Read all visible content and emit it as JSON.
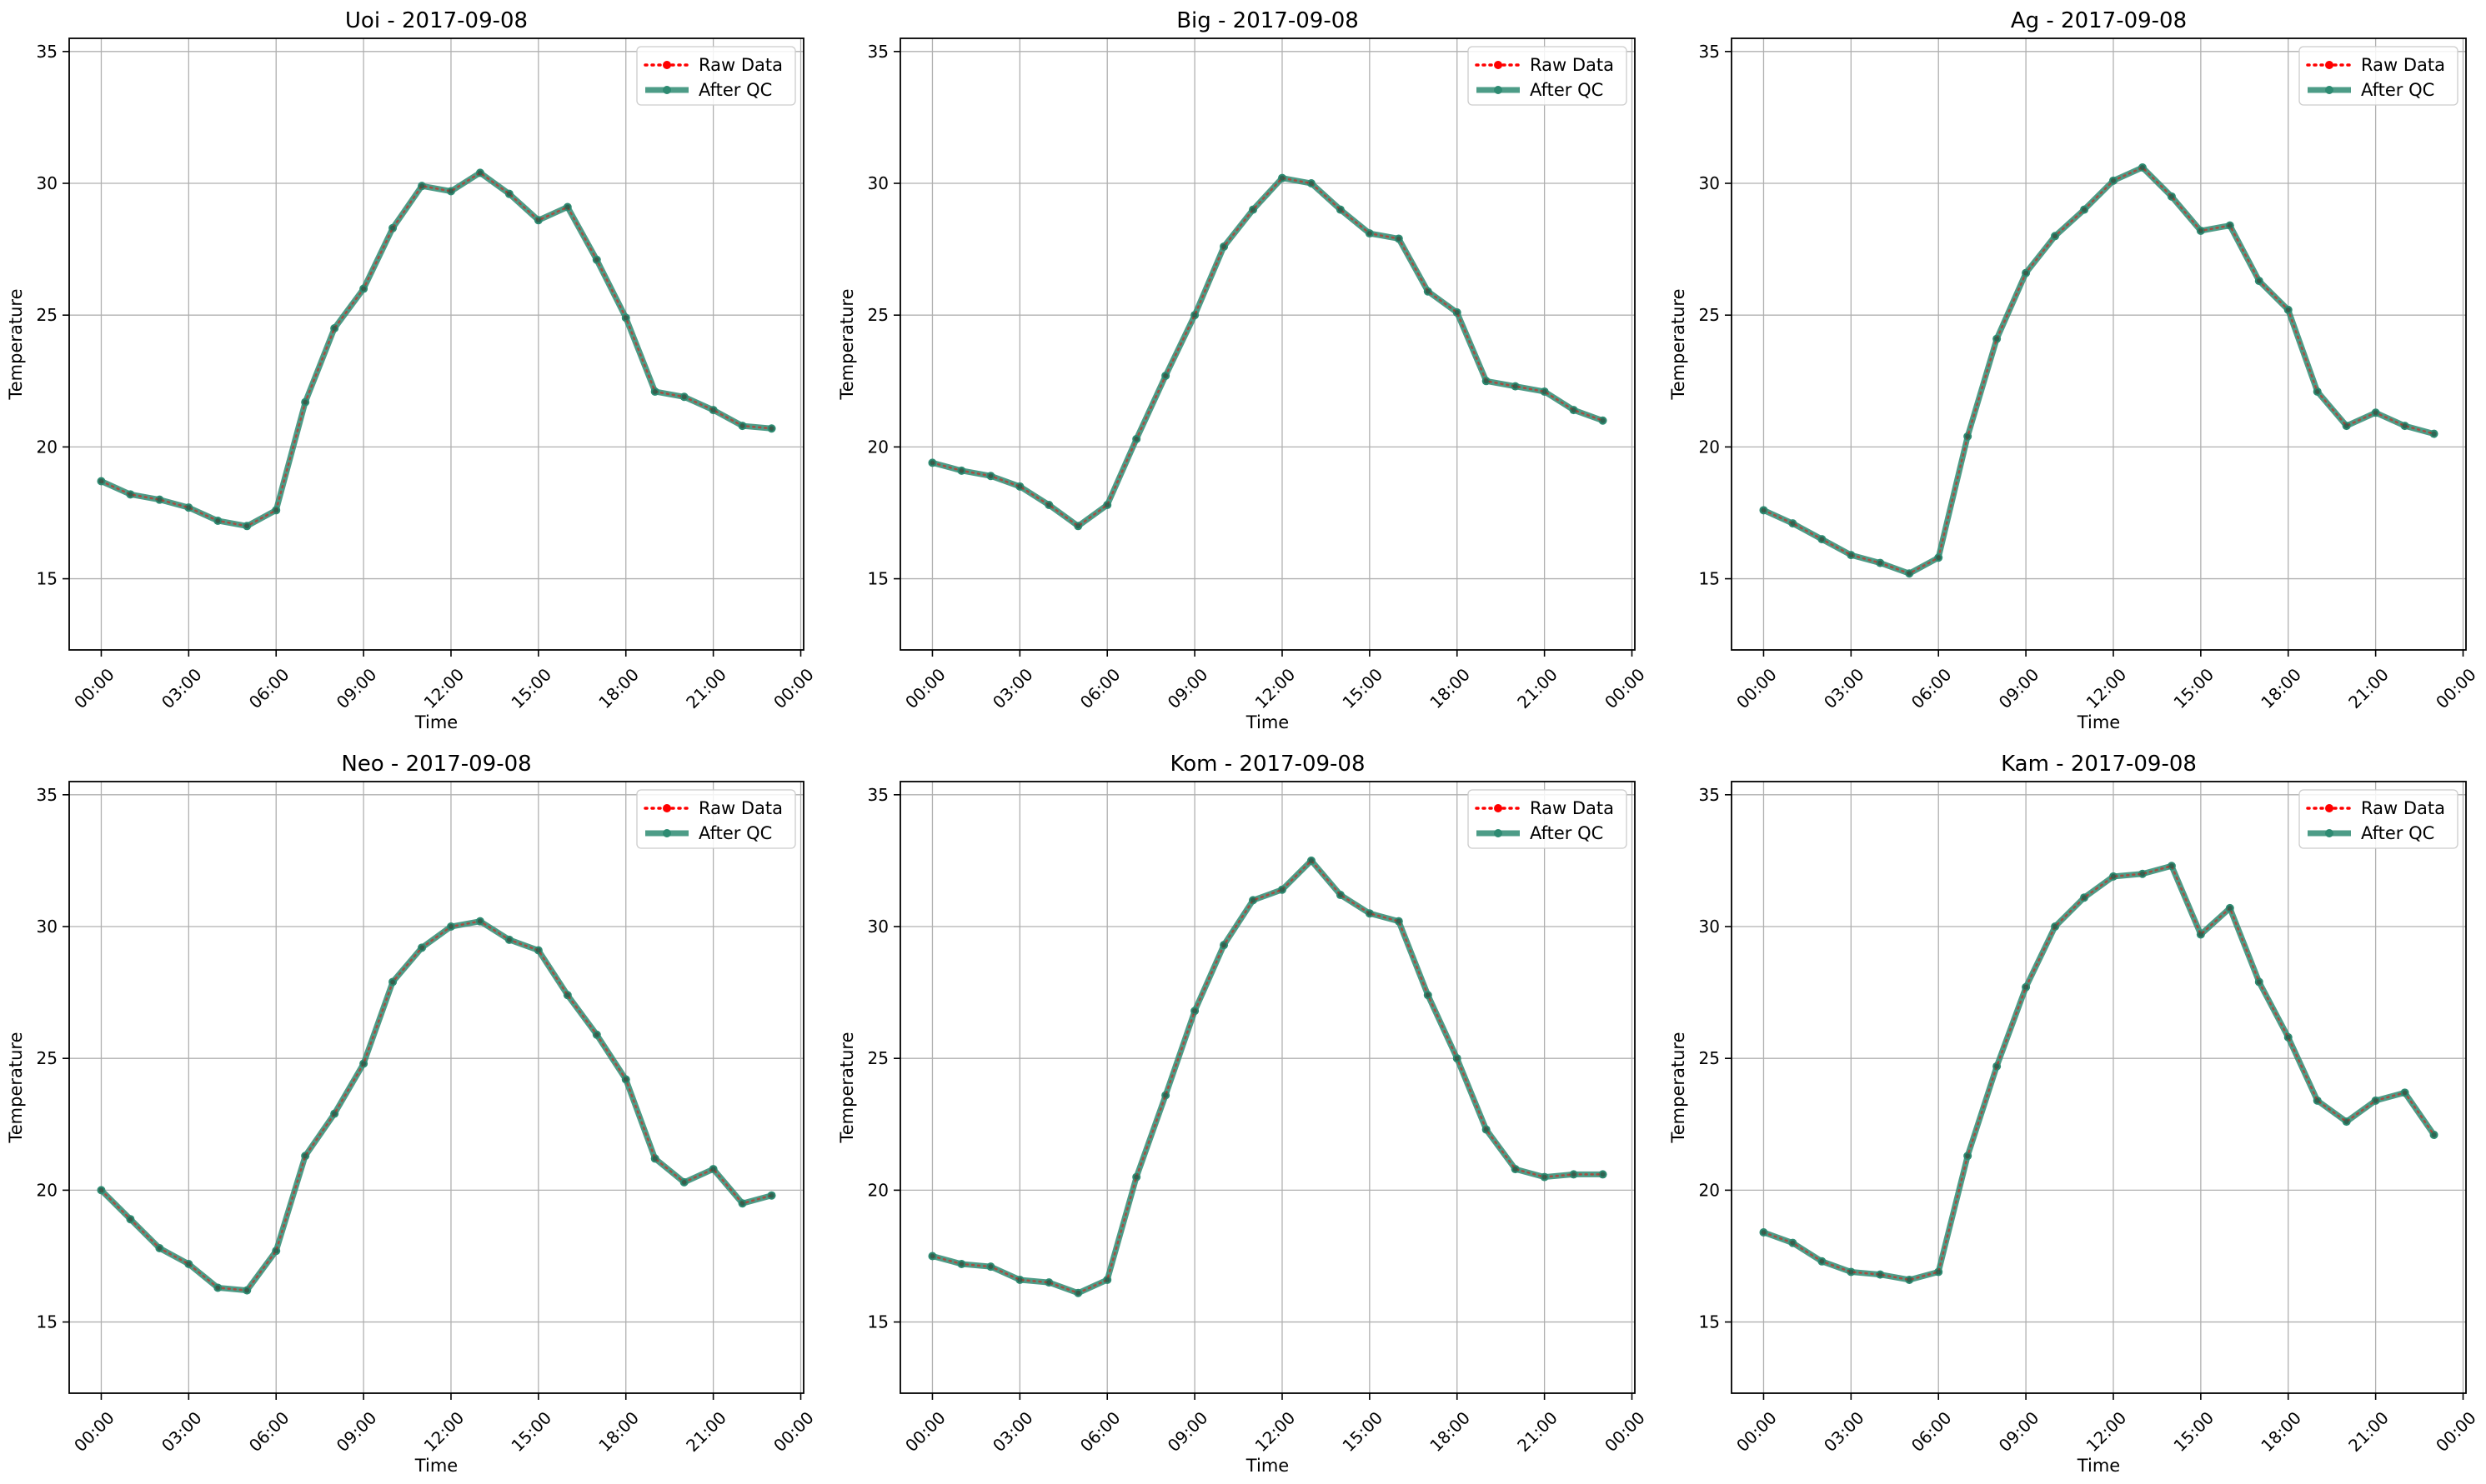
{
  "colors": {
    "raw": "#ff0000",
    "qc": "#2e8b72",
    "grid": "#b0b0b0",
    "axis": "#000000"
  },
  "chart_data": [
    {
      "type": "line",
      "title": "Uoi - 2017-09-08",
      "xlabel": "Time",
      "ylabel": "Temperature",
      "xlim": [
        -1.1,
        24.1
      ],
      "ylim": [
        12.3,
        35.5
      ],
      "x_ticks": [
        0,
        3,
        6,
        9,
        12,
        15,
        18,
        21,
        24
      ],
      "x_tick_labels": [
        "00:00",
        "03:00",
        "06:00",
        "09:00",
        "12:00",
        "15:00",
        "18:00",
        "21:00",
        "00:00"
      ],
      "y_ticks": [
        15,
        20,
        25,
        30,
        35
      ],
      "grid": true,
      "legend_position": "top-right",
      "x": [
        0,
        1,
        2,
        3,
        4,
        5,
        6,
        7,
        8,
        9,
        10,
        11,
        12,
        13,
        14,
        15,
        16,
        17,
        18,
        19,
        20,
        21,
        22,
        23
      ],
      "series": [
        {
          "name": "Raw Data",
          "values": [
            18.7,
            18.2,
            18.0,
            17.7,
            17.2,
            17.0,
            17.6,
            21.7,
            24.5,
            26.0,
            28.3,
            29.9,
            29.7,
            30.4,
            29.6,
            28.6,
            29.1,
            27.1,
            24.9,
            22.1,
            21.9,
            21.4,
            20.8,
            20.7
          ]
        },
        {
          "name": "After QC",
          "values": [
            18.7,
            18.2,
            18.0,
            17.7,
            17.2,
            17.0,
            17.6,
            21.7,
            24.5,
            26.0,
            28.3,
            29.9,
            29.7,
            30.4,
            29.6,
            28.6,
            29.1,
            27.1,
            24.9,
            22.1,
            21.9,
            21.4,
            20.8,
            20.7
          ]
        }
      ]
    },
    {
      "type": "line",
      "title": "Big - 2017-09-08",
      "xlabel": "Time",
      "ylabel": "Temperature",
      "xlim": [
        -1.1,
        24.1
      ],
      "ylim": [
        12.3,
        35.5
      ],
      "x_ticks": [
        0,
        3,
        6,
        9,
        12,
        15,
        18,
        21,
        24
      ],
      "x_tick_labels": [
        "00:00",
        "03:00",
        "06:00",
        "09:00",
        "12:00",
        "15:00",
        "18:00",
        "21:00",
        "00:00"
      ],
      "y_ticks": [
        15,
        20,
        25,
        30,
        35
      ],
      "grid": true,
      "legend_position": "top-right",
      "x": [
        0,
        1,
        2,
        3,
        4,
        5,
        6,
        7,
        8,
        9,
        10,
        11,
        12,
        13,
        14,
        15,
        16,
        17,
        18,
        19,
        20,
        21,
        22,
        23
      ],
      "series": [
        {
          "name": "Raw Data",
          "values": [
            19.4,
            19.1,
            18.9,
            18.5,
            17.8,
            17.0,
            17.8,
            20.3,
            22.7,
            25.0,
            27.6,
            29.0,
            30.2,
            30.0,
            29.0,
            28.1,
            27.9,
            25.9,
            25.1,
            22.5,
            22.3,
            22.1,
            21.4,
            21.0
          ]
        },
        {
          "name": "After QC",
          "values": [
            19.4,
            19.1,
            18.9,
            18.5,
            17.8,
            17.0,
            17.8,
            20.3,
            22.7,
            25.0,
            27.6,
            29.0,
            30.2,
            30.0,
            29.0,
            28.1,
            27.9,
            25.9,
            25.1,
            22.5,
            22.3,
            22.1,
            21.4,
            21.0
          ]
        }
      ]
    },
    {
      "type": "line",
      "title": "Ag - 2017-09-08",
      "xlabel": "Time",
      "ylabel": "Temperature",
      "xlim": [
        -1.1,
        24.1
      ],
      "ylim": [
        12.3,
        35.5
      ],
      "x_ticks": [
        0,
        3,
        6,
        9,
        12,
        15,
        18,
        21,
        24
      ],
      "x_tick_labels": [
        "00:00",
        "03:00",
        "06:00",
        "09:00",
        "12:00",
        "15:00",
        "18:00",
        "21:00",
        "00:00"
      ],
      "y_ticks": [
        15,
        20,
        25,
        30,
        35
      ],
      "grid": true,
      "legend_position": "top-right",
      "x": [
        0,
        1,
        2,
        3,
        4,
        5,
        6,
        7,
        8,
        9,
        10,
        11,
        12,
        13,
        14,
        15,
        16,
        17,
        18,
        19,
        20,
        21,
        22,
        23
      ],
      "series": [
        {
          "name": "Raw Data",
          "values": [
            17.6,
            17.1,
            16.5,
            15.9,
            15.6,
            15.2,
            15.8,
            20.4,
            24.1,
            26.6,
            28.0,
            29.0,
            30.1,
            30.6,
            29.5,
            28.2,
            28.4,
            26.3,
            25.2,
            22.1,
            20.8,
            21.3,
            20.8,
            20.5
          ]
        },
        {
          "name": "After QC",
          "values": [
            17.6,
            17.1,
            16.5,
            15.9,
            15.6,
            15.2,
            15.8,
            20.4,
            24.1,
            26.6,
            28.0,
            29.0,
            30.1,
            30.6,
            29.5,
            28.2,
            28.4,
            26.3,
            25.2,
            22.1,
            20.8,
            21.3,
            20.8,
            20.5
          ]
        }
      ]
    },
    {
      "type": "line",
      "title": "Neo - 2017-09-08",
      "xlabel": "Time",
      "ylabel": "Temperature",
      "xlim": [
        -1.1,
        24.1
      ],
      "ylim": [
        12.3,
        35.5
      ],
      "x_ticks": [
        0,
        3,
        6,
        9,
        12,
        15,
        18,
        21,
        24
      ],
      "x_tick_labels": [
        "00:00",
        "03:00",
        "06:00",
        "09:00",
        "12:00",
        "15:00",
        "18:00",
        "21:00",
        "00:00"
      ],
      "y_ticks": [
        15,
        20,
        25,
        30,
        35
      ],
      "grid": true,
      "legend_position": "top-right",
      "x": [
        0,
        1,
        2,
        3,
        4,
        5,
        6,
        7,
        8,
        9,
        10,
        11,
        12,
        13,
        14,
        15,
        16,
        17,
        18,
        19,
        20,
        21,
        22,
        23
      ],
      "series": [
        {
          "name": "Raw Data",
          "values": [
            20.0,
            18.9,
            17.8,
            17.2,
            16.3,
            16.2,
            17.7,
            21.3,
            22.9,
            24.8,
            27.9,
            29.2,
            30.0,
            30.2,
            29.5,
            29.1,
            27.4,
            25.9,
            24.2,
            21.2,
            20.3,
            20.8,
            19.5,
            19.8
          ]
        },
        {
          "name": "After QC",
          "values": [
            20.0,
            18.9,
            17.8,
            17.2,
            16.3,
            16.2,
            17.7,
            21.3,
            22.9,
            24.8,
            27.9,
            29.2,
            30.0,
            30.2,
            29.5,
            29.1,
            27.4,
            25.9,
            24.2,
            21.2,
            20.3,
            20.8,
            19.5,
            19.8
          ]
        }
      ]
    },
    {
      "type": "line",
      "title": "Kom - 2017-09-08",
      "xlabel": "Time",
      "ylabel": "Temperature",
      "xlim": [
        -1.1,
        24.1
      ],
      "ylim": [
        12.3,
        35.5
      ],
      "x_ticks": [
        0,
        3,
        6,
        9,
        12,
        15,
        18,
        21,
        24
      ],
      "x_tick_labels": [
        "00:00",
        "03:00",
        "06:00",
        "09:00",
        "12:00",
        "15:00",
        "18:00",
        "21:00",
        "00:00"
      ],
      "y_ticks": [
        15,
        20,
        25,
        30,
        35
      ],
      "grid": true,
      "legend_position": "top-right",
      "x": [
        0,
        1,
        2,
        3,
        4,
        5,
        6,
        7,
        8,
        9,
        10,
        11,
        12,
        13,
        14,
        15,
        16,
        17,
        18,
        19,
        20,
        21,
        22,
        23
      ],
      "series": [
        {
          "name": "Raw Data",
          "values": [
            17.5,
            17.2,
            17.1,
            16.6,
            16.5,
            16.1,
            16.6,
            20.5,
            23.6,
            26.8,
            29.3,
            31.0,
            31.4,
            32.5,
            31.2,
            30.5,
            30.2,
            27.4,
            25.0,
            22.3,
            20.8,
            20.5,
            20.6,
            20.6
          ]
        },
        {
          "name": "After QC",
          "values": [
            17.5,
            17.2,
            17.1,
            16.6,
            16.5,
            16.1,
            16.6,
            20.5,
            23.6,
            26.8,
            29.3,
            31.0,
            31.4,
            32.5,
            31.2,
            30.5,
            30.2,
            27.4,
            25.0,
            22.3,
            20.8,
            20.5,
            20.6,
            20.6
          ]
        }
      ]
    },
    {
      "type": "line",
      "title": "Kam - 2017-09-08",
      "xlabel": "Time",
      "ylabel": "Temperature",
      "xlim": [
        -1.1,
        24.1
      ],
      "ylim": [
        12.3,
        35.5
      ],
      "x_ticks": [
        0,
        3,
        6,
        9,
        12,
        15,
        18,
        21,
        24
      ],
      "x_tick_labels": [
        "00:00",
        "03:00",
        "06:00",
        "09:00",
        "12:00",
        "15:00",
        "18:00",
        "21:00",
        "00:00"
      ],
      "y_ticks": [
        15,
        20,
        25,
        30,
        35
      ],
      "grid": true,
      "legend_position": "top-right",
      "x": [
        0,
        1,
        2,
        3,
        4,
        5,
        6,
        7,
        8,
        9,
        10,
        11,
        12,
        13,
        14,
        15,
        16,
        17,
        18,
        19,
        20,
        21,
        22,
        23
      ],
      "series": [
        {
          "name": "Raw Data",
          "values": [
            18.4,
            18.0,
            17.3,
            16.9,
            16.8,
            16.6,
            16.9,
            21.3,
            24.7,
            27.7,
            30.0,
            31.1,
            31.9,
            32.0,
            32.3,
            29.7,
            30.7,
            27.9,
            25.8,
            23.4,
            22.6,
            23.4,
            23.7,
            22.1
          ]
        },
        {
          "name": "After QC",
          "values": [
            18.4,
            18.0,
            17.3,
            16.9,
            16.8,
            16.6,
            16.9,
            21.3,
            24.7,
            27.7,
            30.0,
            31.1,
            31.9,
            32.0,
            32.3,
            29.7,
            30.7,
            27.9,
            25.8,
            23.4,
            22.6,
            23.4,
            23.7,
            22.1
          ]
        }
      ]
    }
  ]
}
